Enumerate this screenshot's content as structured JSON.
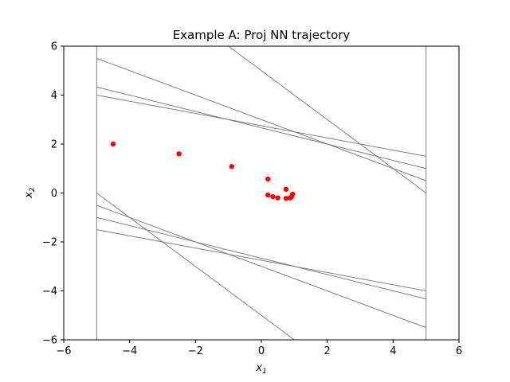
{
  "chart_data": {
    "type": "scatter",
    "title": "Example A: Proj NN trajectory",
    "xlabel": {
      "base": "x",
      "sub": "1"
    },
    "ylabel": {
      "base": "x",
      "sub": "2"
    },
    "xlim": [
      -6,
      6
    ],
    "ylim": [
      -6,
      6
    ],
    "xticks": [
      -6,
      -4,
      -2,
      0,
      2,
      4,
      6
    ],
    "yticks": [
      -6,
      -4,
      -2,
      0,
      2,
      4,
      6
    ],
    "grid": false,
    "colors": {
      "points": "#ff0000",
      "lines": "#808080"
    },
    "constraint_lines": [
      {
        "x1": -5,
        "y1": -6,
        "x2": -5,
        "y2": 6
      },
      {
        "x1": 5,
        "y1": -6,
        "x2": 5,
        "y2": 6
      },
      {
        "x1": -5,
        "y1": 5.5,
        "x2": 5,
        "y2": 0.5
      },
      {
        "x1": -5,
        "y1": 4.33,
        "x2": 5,
        "y2": 1.0
      },
      {
        "x1": -5,
        "y1": 4.0,
        "x2": 5,
        "y2": 1.5
      },
      {
        "x1": -1,
        "y1": 6.0,
        "x2": 5,
        "y2": 0.0
      },
      {
        "x1": -5,
        "y1": 0.0,
        "x2": 1,
        "y2": -6.0
      },
      {
        "x1": -5,
        "y1": -0.5,
        "x2": 5,
        "y2": -5.5
      },
      {
        "x1": -5,
        "y1": -1.0,
        "x2": 5,
        "y2": -4.33
      },
      {
        "x1": -5,
        "y1": -1.5,
        "x2": 5,
        "y2": -4.0
      }
    ],
    "points": [
      {
        "x": -4.5,
        "y": 2.0
      },
      {
        "x": -2.5,
        "y": 1.6
      },
      {
        "x": -0.9,
        "y": 1.08
      },
      {
        "x": 0.2,
        "y": 0.57
      },
      {
        "x": 0.75,
        "y": 0.15
      },
      {
        "x": 0.95,
        "y": -0.05
      },
      {
        "x": 0.92,
        "y": -0.15
      },
      {
        "x": 0.88,
        "y": -0.2
      },
      {
        "x": 0.75,
        "y": -0.22
      },
      {
        "x": 0.5,
        "y": -0.2
      },
      {
        "x": 0.35,
        "y": -0.15
      },
      {
        "x": 0.2,
        "y": -0.08
      }
    ]
  }
}
